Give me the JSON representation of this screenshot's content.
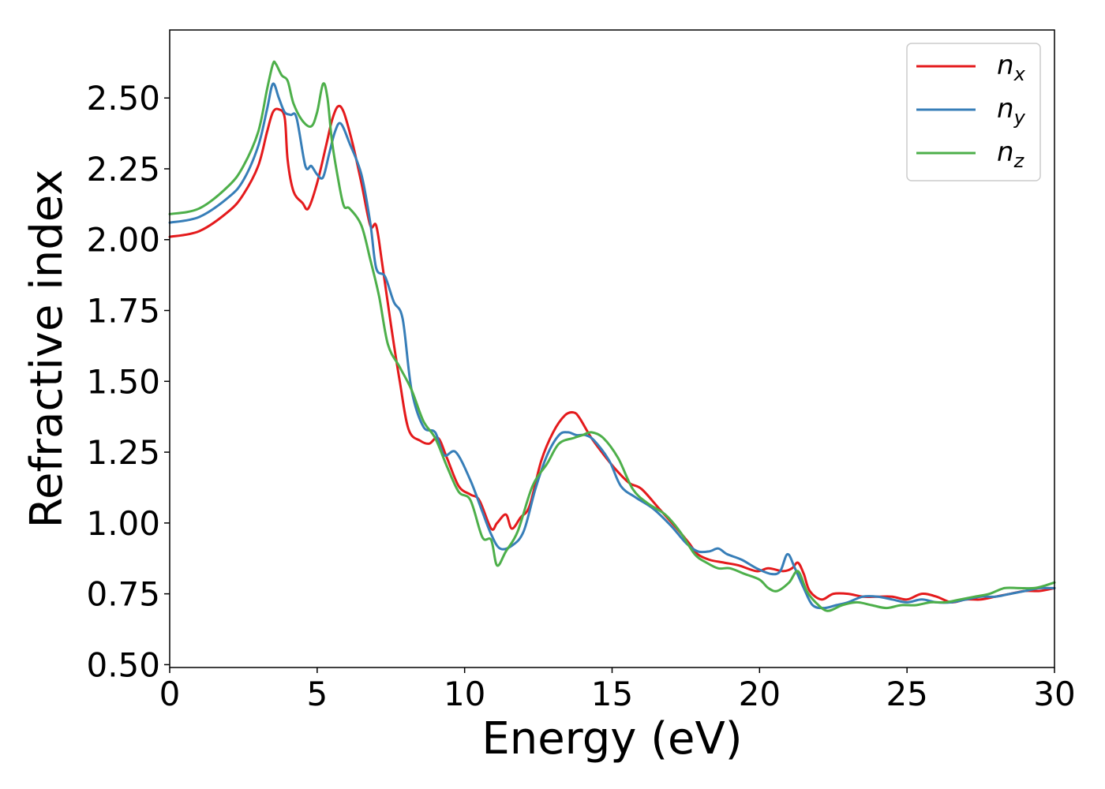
{
  "chart_data": {
    "type": "line",
    "xlabel": "Energy (eV)",
    "ylabel": "Refractive index",
    "xlim": [
      0,
      30
    ],
    "ylim": [
      0.49,
      2.74
    ],
    "xticks": [
      0,
      5,
      10,
      15,
      20,
      25,
      30
    ],
    "xtick_labels": [
      "0",
      "5",
      "10",
      "15",
      "20",
      "25",
      "30"
    ],
    "yticks": [
      0.5,
      0.75,
      1.0,
      1.25,
      1.5,
      1.75,
      2.0,
      2.25,
      2.5
    ],
    "ytick_labels": [
      "0.50",
      "0.75",
      "1.00",
      "1.25",
      "1.50",
      "1.75",
      "2.00",
      "2.25",
      "2.50"
    ],
    "grid": false,
    "legend_position": "top-right",
    "series": [
      {
        "name": "n_x",
        "legend_base": "n",
        "legend_sub": "x",
        "color": "#e41a1c",
        "x": [
          0,
          1,
          2,
          2.5,
          3,
          3.3,
          3.5,
          3.7,
          3.9,
          4.0,
          4.2,
          4.5,
          4.7,
          5.0,
          5.3,
          5.5,
          5.7,
          5.9,
          6.2,
          6.5,
          6.8,
          7.0,
          7.2,
          7.5,
          7.8,
          8.1,
          8.5,
          8.8,
          9.1,
          9.4,
          9.8,
          10.2,
          10.5,
          10.9,
          11.1,
          11.4,
          11.6,
          11.9,
          12.2,
          12.6,
          13.0,
          13.4,
          13.7,
          13.9,
          14.3,
          14.8,
          15.2,
          15.6,
          16.0,
          16.6,
          17.2,
          17.6,
          17.9,
          18.3,
          18.8,
          19.3,
          19.9,
          20.3,
          20.8,
          21.1,
          21.3,
          21.5,
          21.7,
          22.1,
          22.5,
          23.0,
          23.5,
          24.0,
          24.5,
          25.0,
          25.5,
          26.0,
          26.5,
          27.0,
          27.5,
          28.0,
          28.5,
          29.0,
          29.5,
          30.0
        ],
        "values": [
          2.01,
          2.03,
          2.1,
          2.16,
          2.26,
          2.38,
          2.45,
          2.46,
          2.43,
          2.28,
          2.17,
          2.13,
          2.11,
          2.2,
          2.33,
          2.42,
          2.47,
          2.45,
          2.34,
          2.2,
          2.05,
          2.05,
          1.92,
          1.7,
          1.5,
          1.33,
          1.29,
          1.28,
          1.3,
          1.23,
          1.13,
          1.1,
          1.08,
          0.98,
          1.0,
          1.03,
          0.98,
          1.02,
          1.06,
          1.22,
          1.32,
          1.38,
          1.39,
          1.37,
          1.3,
          1.23,
          1.18,
          1.14,
          1.12,
          1.05,
          0.98,
          0.93,
          0.89,
          0.87,
          0.86,
          0.85,
          0.83,
          0.84,
          0.83,
          0.84,
          0.86,
          0.82,
          0.76,
          0.73,
          0.75,
          0.75,
          0.74,
          0.74,
          0.74,
          0.73,
          0.75,
          0.74,
          0.72,
          0.73,
          0.73,
          0.74,
          0.75,
          0.76,
          0.76,
          0.77
        ]
      },
      {
        "name": "n_y",
        "legend_base": "n",
        "legend_sub": "y",
        "color": "#377eb8",
        "x": [
          0,
          1,
          2,
          2.5,
          3,
          3.3,
          3.5,
          3.7,
          3.9,
          4.1,
          4.3,
          4.6,
          4.8,
          5.0,
          5.2,
          5.4,
          5.6,
          5.8,
          6.1,
          6.5,
          6.8,
          7.0,
          7.3,
          7.6,
          7.9,
          8.2,
          8.6,
          9.0,
          9.3,
          9.7,
          10.2,
          10.6,
          10.9,
          11.2,
          11.6,
          12.0,
          12.4,
          12.8,
          13.2,
          13.5,
          13.8,
          14.1,
          14.4,
          14.9,
          15.3,
          15.8,
          16.4,
          17.0,
          17.5,
          17.9,
          18.3,
          18.6,
          18.9,
          19.4,
          19.9,
          20.4,
          20.7,
          20.95,
          21.2,
          21.5,
          21.8,
          22.2,
          22.6,
          23.0,
          23.5,
          24.0,
          24.5,
          25.0,
          25.5,
          26.0,
          26.5,
          27.0,
          27.5,
          28.0,
          28.5,
          29.0,
          29.5,
          30.0
        ],
        "values": [
          2.06,
          2.08,
          2.15,
          2.21,
          2.33,
          2.46,
          2.55,
          2.5,
          2.45,
          2.44,
          2.43,
          2.26,
          2.26,
          2.23,
          2.22,
          2.3,
          2.38,
          2.41,
          2.34,
          2.23,
          2.06,
          1.9,
          1.87,
          1.78,
          1.72,
          1.47,
          1.34,
          1.32,
          1.24,
          1.25,
          1.15,
          1.04,
          0.96,
          0.91,
          0.92,
          0.97,
          1.12,
          1.24,
          1.31,
          1.32,
          1.31,
          1.31,
          1.29,
          1.22,
          1.13,
          1.09,
          1.05,
          0.99,
          0.93,
          0.9,
          0.9,
          0.91,
          0.89,
          0.87,
          0.84,
          0.82,
          0.83,
          0.89,
          0.84,
          0.77,
          0.71,
          0.7,
          0.71,
          0.72,
          0.74,
          0.74,
          0.73,
          0.72,
          0.73,
          0.72,
          0.72,
          0.73,
          0.74,
          0.74,
          0.75,
          0.76,
          0.77,
          0.77
        ]
      },
      {
        "name": "n_z",
        "legend_base": "n",
        "legend_sub": "z",
        "color": "#4daf4a",
        "x": [
          0,
          1,
          2,
          2.5,
          3,
          3.3,
          3.5,
          3.6,
          3.8,
          4.0,
          4.2,
          4.5,
          4.8,
          5.0,
          5.2,
          5.35,
          5.5,
          5.7,
          5.9,
          6.1,
          6.5,
          6.8,
          7.1,
          7.4,
          7.8,
          8.2,
          8.6,
          9.0,
          9.4,
          9.8,
          10.2,
          10.6,
          10.9,
          11.1,
          11.4,
          11.8,
          12.3,
          12.8,
          13.2,
          13.7,
          14.0,
          14.3,
          14.7,
          15.2,
          15.7,
          16.2,
          16.8,
          17.3,
          17.8,
          18.2,
          18.6,
          19.0,
          19.5,
          20.0,
          20.3,
          20.6,
          21.0,
          21.3,
          21.6,
          21.9,
          22.3,
          22.8,
          23.3,
          23.8,
          24.3,
          24.8,
          25.3,
          25.8,
          26.3,
          26.8,
          27.3,
          27.8,
          28.3,
          28.8,
          29.3,
          29.7,
          30.0
        ],
        "values": [
          2.09,
          2.11,
          2.19,
          2.26,
          2.38,
          2.53,
          2.62,
          2.62,
          2.58,
          2.56,
          2.48,
          2.42,
          2.4,
          2.45,
          2.55,
          2.5,
          2.35,
          2.22,
          2.12,
          2.11,
          2.05,
          1.93,
          1.8,
          1.63,
          1.55,
          1.47,
          1.36,
          1.3,
          1.2,
          1.11,
          1.08,
          0.95,
          0.94,
          0.85,
          0.9,
          0.97,
          1.13,
          1.21,
          1.28,
          1.3,
          1.31,
          1.32,
          1.3,
          1.23,
          1.12,
          1.07,
          1.03,
          0.97,
          0.89,
          0.86,
          0.84,
          0.84,
          0.82,
          0.8,
          0.77,
          0.76,
          0.79,
          0.83,
          0.76,
          0.72,
          0.69,
          0.71,
          0.72,
          0.71,
          0.7,
          0.71,
          0.71,
          0.72,
          0.72,
          0.73,
          0.74,
          0.75,
          0.77,
          0.77,
          0.77,
          0.78,
          0.79
        ]
      }
    ]
  }
}
